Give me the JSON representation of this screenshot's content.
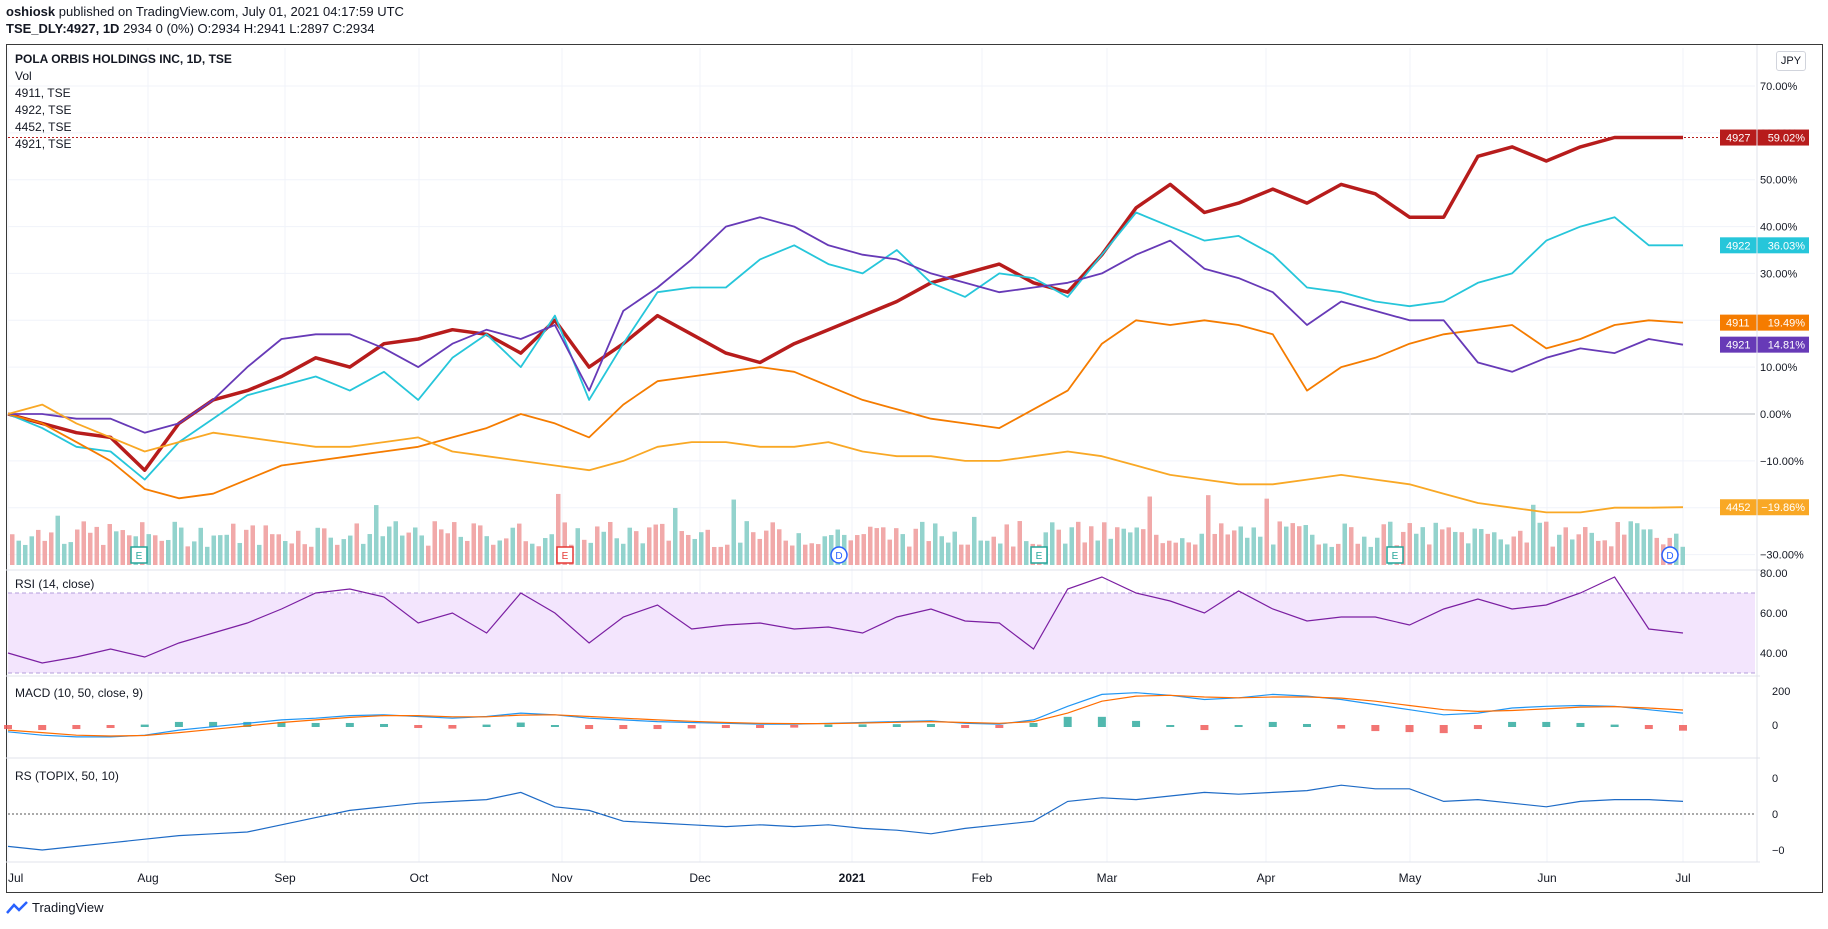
{
  "header": {
    "publisher": "oshiosk",
    "published_text": "published on TradingView.com, July 01, 2021 04:17:59 UTC",
    "symbol": "TSE_DLY:4927, 1D",
    "ohlc": "2934 0 (0%) O:2934 H:2941 L:2897 C:2934"
  },
  "legend": {
    "title": "POLA ORBIS HOLDINGS INC, 1D, TSE",
    "vol": "Vol",
    "comparisons": [
      "4911, TSE",
      "4922, TSE",
      "4452, TSE",
      "4921, TSE"
    ]
  },
  "currency_button": "JPY",
  "panes": {
    "rsi_label": "RSI (14, close)",
    "macd_label": "MACD (10, 50, close, 9)",
    "rs_label": "RS (TOPIX, 50, 10)"
  },
  "footer": {
    "brand": "TradingView"
  },
  "chart_data": {
    "type": "line",
    "x_ticks": [
      "Jul",
      "Aug",
      "Sep",
      "Oct",
      "Nov",
      "Dec",
      "2021",
      "Feb",
      "Mar",
      "Apr",
      "May",
      "Jun",
      "Jul"
    ],
    "y_axis_labels": [
      "70.00%",
      "60.00%",
      "50.00%",
      "40.00%",
      "30.00%",
      "20.00%",
      "10.00%",
      "0.00%",
      "−10.00%",
      "−20.00%",
      "−30.00%"
    ],
    "y_unit": "%",
    "ylim": [
      -30,
      70
    ],
    "series": [
      {
        "name": "4927",
        "color": "#b71c1c",
        "last_label": "59.02%",
        "values": [
          0,
          -2,
          -4,
          -5,
          -12,
          -2,
          3,
          5,
          8,
          12,
          10,
          15,
          16,
          18,
          17,
          13,
          20,
          10,
          15,
          21,
          17,
          13,
          11,
          15,
          18,
          21,
          24,
          28,
          30,
          32,
          28,
          26,
          34,
          44,
          49,
          43,
          45,
          48,
          45,
          49,
          47,
          42,
          42,
          55,
          57,
          54,
          57,
          59,
          59,
          59
        ]
      },
      {
        "name": "4922",
        "color": "#26c6da",
        "last_label": "36.03%",
        "values": [
          0,
          -3,
          -7,
          -8,
          -14,
          -6,
          -1,
          4,
          6,
          8,
          5,
          9,
          3,
          12,
          17,
          10,
          21,
          3,
          15,
          26,
          27,
          27,
          33,
          36,
          32,
          30,
          35,
          28,
          25,
          30,
          29,
          25,
          34,
          43,
          40,
          37,
          38,
          34,
          27,
          26,
          24,
          23,
          24,
          28,
          30,
          37,
          40,
          42,
          36,
          36
        ]
      },
      {
        "name": "4911",
        "color": "#f57c00",
        "last_label": "19.49%",
        "values": [
          0,
          -2,
          -6,
          -10,
          -16,
          -18,
          -17,
          -14,
          -11,
          -10,
          -9,
          -8,
          -7,
          -5,
          -3,
          0,
          -2,
          -5,
          2,
          7,
          8,
          9,
          10,
          9,
          6,
          3,
          1,
          -1,
          -2,
          -3,
          1,
          5,
          15,
          20,
          19,
          20,
          19,
          17,
          5,
          10,
          12,
          15,
          17,
          18,
          19,
          14,
          16,
          19,
          20,
          19.5
        ]
      },
      {
        "name": "4921",
        "color": "#673ab7",
        "last_label": "14.81%",
        "values": [
          0,
          0,
          -1,
          -1,
          -4,
          -2,
          3,
          10,
          16,
          17,
          17,
          14,
          10,
          15,
          18,
          16,
          19,
          5,
          22,
          27,
          33,
          40,
          42,
          40,
          36,
          34,
          33,
          30,
          28,
          26,
          27,
          28,
          30,
          34,
          37,
          31,
          29,
          26,
          19,
          24,
          22,
          20,
          20,
          11,
          9,
          12,
          14,
          13,
          16,
          14.8
        ]
      },
      {
        "name": "4452",
        "color": "#f9a825",
        "last_label": "−19.86%",
        "values": [
          0,
          2,
          -2,
          -5,
          -8,
          -6,
          -4,
          -5,
          -6,
          -7,
          -7,
          -6,
          -5,
          -8,
          -9,
          -10,
          -11,
          -12,
          -10,
          -7,
          -6,
          -6,
          -7,
          -7,
          -6,
          -8,
          -9,
          -9,
          -10,
          -10,
          -9,
          -8,
          -9,
          -11,
          -13,
          -14,
          -15,
          -15,
          -14,
          -13,
          -14,
          -15,
          -17,
          -19,
          -20,
          -21,
          -21,
          -20,
          -20,
          -19.9
        ]
      }
    ],
    "volume_labels_on_bars": [
      "E",
      "E",
      "D",
      "E",
      "E",
      "D"
    ],
    "rsi": {
      "ylim": [
        30,
        80
      ],
      "ticks": [
        "80.00",
        "60.00",
        "40.00"
      ],
      "values": [
        40,
        35,
        38,
        42,
        38,
        45,
        50,
        55,
        62,
        70,
        72,
        68,
        55,
        60,
        50,
        70,
        60,
        45,
        58,
        64,
        52,
        54,
        55,
        52,
        53,
        50,
        58,
        62,
        56,
        55,
        42,
        72,
        78,
        70,
        66,
        60,
        71,
        62,
        56,
        58,
        58,
        54,
        62,
        67,
        62,
        64,
        70,
        78,
        52,
        50
      ]
    },
    "macd": {
      "ticks": [
        "200",
        "0"
      ],
      "macd_values": [
        -40,
        -60,
        -70,
        -70,
        -60,
        -30,
        -10,
        10,
        30,
        40,
        55,
        60,
        50,
        40,
        50,
        70,
        60,
        40,
        30,
        20,
        15,
        10,
        5,
        5,
        10,
        15,
        20,
        25,
        10,
        5,
        30,
        110,
        180,
        190,
        175,
        150,
        160,
        180,
        170,
        150,
        120,
        90,
        60,
        70,
        100,
        110,
        115,
        110,
        90,
        70
      ],
      "signal_values": [
        -30,
        -45,
        -60,
        -65,
        -62,
        -45,
        -25,
        -5,
        15,
        30,
        45,
        55,
        55,
        48,
        48,
        58,
        60,
        50,
        40,
        30,
        22,
        15,
        10,
        8,
        8,
        12,
        16,
        20,
        15,
        10,
        20,
        70,
        140,
        170,
        175,
        165,
        160,
        165,
        165,
        158,
        140,
        115,
        90,
        80,
        85,
        95,
        105,
        108,
        100,
        88
      ]
    },
    "rs": {
      "ticks": [
        "0",
        "0",
        "−0"
      ],
      "values": [
        -0.9,
        -1,
        -0.9,
        -0.8,
        -0.7,
        -0.6,
        -0.55,
        -0.5,
        -0.3,
        -0.1,
        0.1,
        0.2,
        0.3,
        0.35,
        0.4,
        0.6,
        0.2,
        0.1,
        -0.2,
        -0.25,
        -0.3,
        -0.35,
        -0.3,
        -0.35,
        -0.3,
        -0.4,
        -0.45,
        -0.55,
        -0.4,
        -0.3,
        -0.2,
        0.35,
        0.45,
        0.4,
        0.5,
        0.6,
        0.55,
        0.6,
        0.65,
        0.8,
        0.7,
        0.7,
        0.35,
        0.4,
        0.3,
        0.2,
        0.35,
        0.4,
        0.4,
        0.35
      ]
    }
  }
}
